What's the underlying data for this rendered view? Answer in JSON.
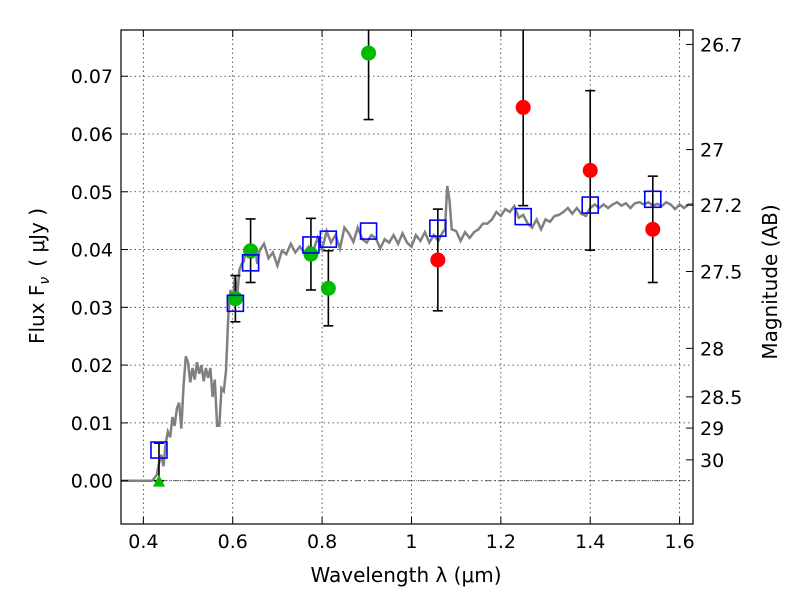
{
  "chart_data": {
    "type": "scatter",
    "title": "",
    "xlabel": "Wavelength  λ (μm)",
    "ylabel": "Flux  F",
    "ylabel_sub": "ν",
    "ylabel_unit": "( μJy )",
    "y2label": "Magnitude (AB)",
    "xlim": [
      0.35,
      1.63
    ],
    "ylim": [
      -0.0075,
      0.078
    ],
    "grid": true,
    "x_ticks": [
      0.4,
      0.6,
      0.8,
      1,
      1.2,
      1.4,
      1.6
    ],
    "x_tick_labels": [
      "0.4",
      "0.6",
      "0.8",
      "1",
      "1.2",
      "1.4",
      "1.6"
    ],
    "y_ticks": [
      0,
      0.01,
      0.02,
      0.03,
      0.04,
      0.05,
      0.06,
      0.07
    ],
    "y_tick_labels": [
      "0.00",
      "0.01",
      "0.02",
      "0.03",
      "0.04",
      "0.05",
      "0.06",
      "0.07"
    ],
    "mag_ticks": [
      {
        "label": "26.7",
        "flux": 0.0755
      },
      {
        "label": "27",
        "flux": 0.0573
      },
      {
        "label": "27.2",
        "flux": 0.0477
      },
      {
        "label": "27.5",
        "flux": 0.0362
      },
      {
        "label": "28",
        "flux": 0.0229
      },
      {
        "label": "28.5",
        "flux": 0.0145
      },
      {
        "label": "29",
        "flux": 0.0091
      },
      {
        "label": "30",
        "flux": 0.0036
      }
    ],
    "model_spectrum": [
      [
        0.35,
        0.0
      ],
      [
        0.42,
        0.0
      ],
      [
        0.425,
        0.0005
      ],
      [
        0.43,
        0.001
      ],
      [
        0.435,
        0.003
      ],
      [
        0.44,
        0.0045
      ],
      [
        0.445,
        0.0025
      ],
      [
        0.45,
        0.0065
      ],
      [
        0.455,
        0.0085
      ],
      [
        0.46,
        0.0075
      ],
      [
        0.465,
        0.011
      ],
      [
        0.47,
        0.0095
      ],
      [
        0.475,
        0.0125
      ],
      [
        0.48,
        0.0135
      ],
      [
        0.485,
        0.009
      ],
      [
        0.49,
        0.0165
      ],
      [
        0.495,
        0.0215
      ],
      [
        0.5,
        0.0205
      ],
      [
        0.505,
        0.017
      ],
      [
        0.51,
        0.0195
      ],
      [
        0.515,
        0.0175
      ],
      [
        0.52,
        0.0205
      ],
      [
        0.525,
        0.0185
      ],
      [
        0.53,
        0.02
      ],
      [
        0.535,
        0.0172
      ],
      [
        0.54,
        0.0195
      ],
      [
        0.545,
        0.0178
      ],
      [
        0.55,
        0.0195
      ],
      [
        0.555,
        0.0145
      ],
      [
        0.56,
        0.0175
      ],
      [
        0.565,
        0.0095
      ],
      [
        0.57,
        0.0095
      ],
      [
        0.575,
        0.016
      ],
      [
        0.58,
        0.0155
      ],
      [
        0.585,
        0.019
      ],
      [
        0.59,
        0.0285
      ],
      [
        0.595,
        0.033
      ],
      [
        0.6,
        0.031
      ],
      [
        0.605,
        0.0355
      ],
      [
        0.61,
        0.032
      ],
      [
        0.615,
        0.0365
      ],
      [
        0.62,
        0.0375
      ],
      [
        0.625,
        0.038
      ],
      [
        0.63,
        0.0405
      ],
      [
        0.635,
        0.0385
      ],
      [
        0.64,
        0.04
      ],
      [
        0.645,
        0.0385
      ],
      [
        0.65,
        0.0405
      ],
      [
        0.655,
        0.0375
      ],
      [
        0.66,
        0.0398
      ],
      [
        0.67,
        0.041
      ],
      [
        0.68,
        0.0385
      ],
      [
        0.69,
        0.0395
      ],
      [
        0.7,
        0.0372
      ],
      [
        0.71,
        0.0398
      ],
      [
        0.72,
        0.0392
      ],
      [
        0.73,
        0.041
      ],
      [
        0.74,
        0.0395
      ],
      [
        0.75,
        0.0405
      ],
      [
        0.76,
        0.0395
      ],
      [
        0.77,
        0.0405
      ],
      [
        0.78,
        0.0398
      ],
      [
        0.79,
        0.042
      ],
      [
        0.8,
        0.04
      ],
      [
        0.81,
        0.0432
      ],
      [
        0.82,
        0.0412
      ],
      [
        0.83,
        0.0425
      ],
      [
        0.84,
        0.0402
      ],
      [
        0.85,
        0.0438
      ],
      [
        0.86,
        0.0428
      ],
      [
        0.87,
        0.0413
      ],
      [
        0.88,
        0.0438
      ],
      [
        0.89,
        0.0418
      ],
      [
        0.9,
        0.0412
      ],
      [
        0.91,
        0.0425
      ],
      [
        0.92,
        0.042
      ],
      [
        0.93,
        0.0402
      ],
      [
        0.94,
        0.0418
      ],
      [
        0.95,
        0.0412
      ],
      [
        0.96,
        0.0425
      ],
      [
        0.97,
        0.041
      ],
      [
        0.98,
        0.0428
      ],
      [
        0.99,
        0.0412
      ],
      [
        1.0,
        0.0405
      ],
      [
        1.01,
        0.0425
      ],
      [
        1.02,
        0.0415
      ],
      [
        1.03,
        0.043
      ],
      [
        1.04,
        0.0412
      ],
      [
        1.05,
        0.0425
      ],
      [
        1.06,
        0.0415
      ],
      [
        1.07,
        0.043
      ],
      [
        1.075,
        0.0435
      ],
      [
        1.08,
        0.051
      ],
      [
        1.085,
        0.0485
      ],
      [
        1.09,
        0.0435
      ],
      [
        1.1,
        0.0432
      ],
      [
        1.11,
        0.0415
      ],
      [
        1.12,
        0.043
      ],
      [
        1.13,
        0.042
      ],
      [
        1.14,
        0.043
      ],
      [
        1.15,
        0.0435
      ],
      [
        1.16,
        0.0445
      ],
      [
        1.17,
        0.0445
      ],
      [
        1.18,
        0.0452
      ],
      [
        1.19,
        0.0465
      ],
      [
        1.2,
        0.0458
      ],
      [
        1.21,
        0.047
      ],
      [
        1.22,
        0.0465
      ],
      [
        1.23,
        0.0475
      ],
      [
        1.24,
        0.0455
      ],
      [
        1.25,
        0.046
      ],
      [
        1.26,
        0.0445
      ],
      [
        1.27,
        0.0438
      ],
      [
        1.28,
        0.0452
      ],
      [
        1.29,
        0.0435
      ],
      [
        1.3,
        0.0452
      ],
      [
        1.31,
        0.0448
      ],
      [
        1.32,
        0.0458
      ],
      [
        1.33,
        0.046
      ],
      [
        1.34,
        0.0465
      ],
      [
        1.35,
        0.0472
      ],
      [
        1.36,
        0.0462
      ],
      [
        1.37,
        0.0472
      ],
      [
        1.38,
        0.0462
      ],
      [
        1.39,
        0.0458
      ],
      [
        1.4,
        0.0472
      ],
      [
        1.41,
        0.0478
      ],
      [
        1.42,
        0.0472
      ],
      [
        1.43,
        0.0478
      ],
      [
        1.44,
        0.0472
      ],
      [
        1.45,
        0.0478
      ],
      [
        1.46,
        0.0482
      ],
      [
        1.47,
        0.0476
      ],
      [
        1.48,
        0.048
      ],
      [
        1.49,
        0.0472
      ],
      [
        1.5,
        0.048
      ],
      [
        1.51,
        0.0482
      ],
      [
        1.52,
        0.0478
      ],
      [
        1.53,
        0.0482
      ],
      [
        1.54,
        0.0476
      ],
      [
        1.55,
        0.0479
      ],
      [
        1.56,
        0.0475
      ],
      [
        1.57,
        0.0482
      ],
      [
        1.58,
        0.0478
      ],
      [
        1.59,
        0.047
      ],
      [
        1.6,
        0.0478
      ],
      [
        1.61,
        0.0472
      ],
      [
        1.62,
        0.0478
      ],
      [
        1.63,
        0.0478
      ]
    ],
    "model_points": [
      {
        "x": 0.435,
        "y": 0.0053
      },
      {
        "x": 0.606,
        "y": 0.0307
      },
      {
        "x": 0.64,
        "y": 0.0377
      },
      {
        "x": 0.775,
        "y": 0.0408
      },
      {
        "x": 0.814,
        "y": 0.0418
      },
      {
        "x": 0.904,
        "y": 0.0432
      },
      {
        "x": 1.059,
        "y": 0.0437
      },
      {
        "x": 1.25,
        "y": 0.0457
      },
      {
        "x": 1.4,
        "y": 0.0477
      },
      {
        "x": 1.54,
        "y": 0.0487
      }
    ],
    "green_points": [
      {
        "x": 0.606,
        "y": 0.0315,
        "err": 0.004
      },
      {
        "x": 0.64,
        "y": 0.0398,
        "err": 0.0055
      },
      {
        "x": 0.775,
        "y": 0.0392,
        "err": 0.0062
      },
      {
        "x": 0.814,
        "y": 0.0333,
        "err": 0.0065
      },
      {
        "x": 0.904,
        "y": 0.074,
        "err": 0.0115
      }
    ],
    "red_points": [
      {
        "x": 1.059,
        "y": 0.0382,
        "err": 0.0088
      },
      {
        "x": 1.25,
        "y": 0.0646,
        "err": 0.017
      },
      {
        "x": 1.4,
        "y": 0.0537,
        "err": 0.0138
      },
      {
        "x": 1.54,
        "y": 0.0435,
        "err": 0.0092
      }
    ],
    "upper_limits": [
      {
        "x": 0.435,
        "y": 0.0,
        "err_up": 0.0065
      }
    ],
    "colors": {
      "model_line": "#808080",
      "model_points": "#0000ff",
      "green": "#00bb00",
      "red": "#ff0000",
      "triangle": "#00bb00"
    }
  }
}
